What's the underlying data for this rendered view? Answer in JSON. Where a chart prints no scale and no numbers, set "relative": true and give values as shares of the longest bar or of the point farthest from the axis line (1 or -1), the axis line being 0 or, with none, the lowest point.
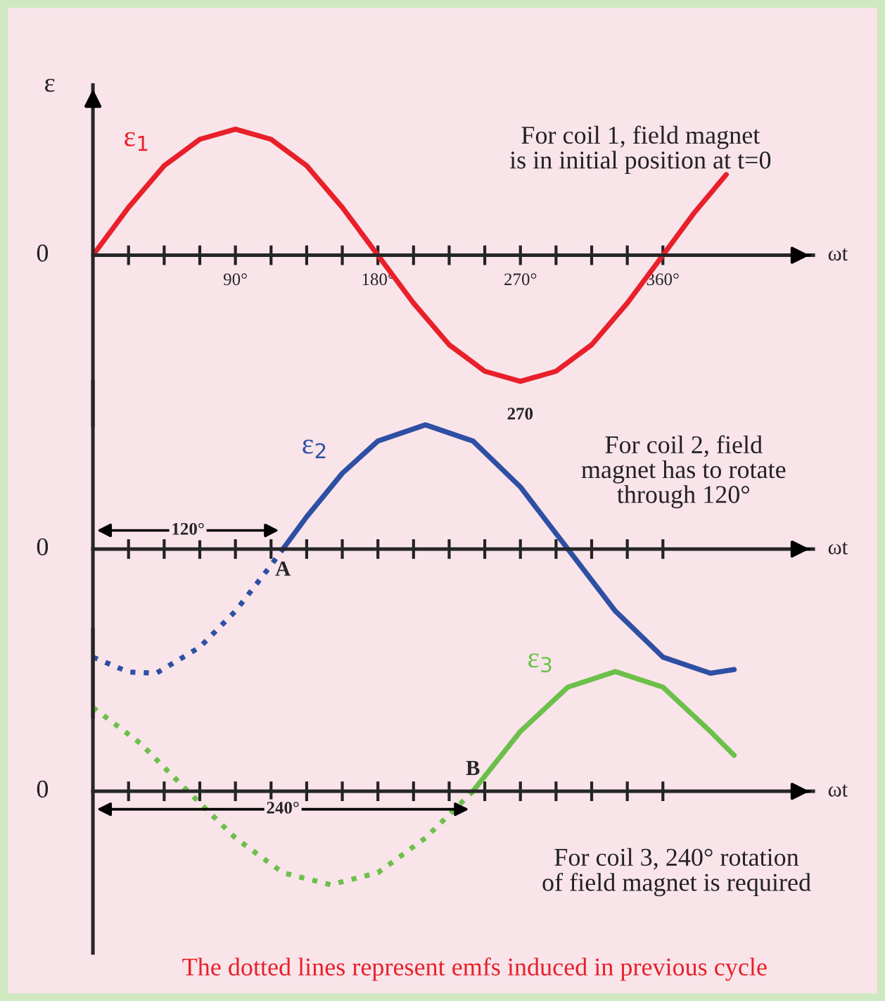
{
  "chart_data": [
    {
      "type": "line",
      "relative": true,
      "ylabel": "ε",
      "xlabel": "ωt",
      "xlim": [
        0,
        455
      ],
      "xticks": [
        {
          "value": 22.5,
          "label": null
        },
        {
          "value": 45,
          "label": null
        },
        {
          "value": 67.5,
          "label": null
        },
        {
          "value": 90,
          "label": "90°"
        },
        {
          "value": 112.5,
          "label": null
        },
        {
          "value": 135,
          "label": null
        },
        {
          "value": 157.5,
          "label": null
        },
        {
          "value": 180,
          "label": "180°"
        },
        {
          "value": 202.5,
          "label": null
        },
        {
          "value": 225,
          "label": null
        },
        {
          "value": 247.5,
          "label": null
        },
        {
          "value": 270,
          "label": "270°"
        },
        {
          "value": 292.5,
          "label": null
        },
        {
          "value": 315,
          "label": null
        },
        {
          "value": 337.5,
          "label": null
        },
        {
          "value": 360,
          "label": "360°"
        }
      ],
      "tick_labels": "x",
      "grid": false,
      "marker": "none",
      "series": [
        {
          "name": "ε$_{1}$",
          "color": "#e8202a",
          "line_style": "solid",
          "x": [
            0,
            22.5,
            45,
            67.5,
            90,
            112.5,
            135,
            157.5,
            180,
            202.5,
            225,
            247.5,
            270,
            292.5,
            315,
            337.5,
            360,
            380,
            400
          ],
          "values": [
            0,
            0.38,
            0.71,
            0.92,
            1,
            0.92,
            0.71,
            0.38,
            0,
            -0.38,
            -0.71,
            -0.92,
            -1,
            -0.92,
            -0.71,
            -0.38,
            0,
            0.34,
            0.64
          ]
        }
      ],
      "annotations": [
        "For coil 1, field magnet\nis in initial position at t=0",
        "0",
        "270"
      ]
    },
    {
      "type": "line",
      "relative": true,
      "xlabel": "ωt",
      "xlim": [
        0,
        455
      ],
      "xticks": [
        {
          "value": 22.5,
          "label": null
        },
        {
          "value": 45,
          "label": null
        },
        {
          "value": 67.5,
          "label": null
        },
        {
          "value": 90,
          "label": null
        },
        {
          "value": 112.5,
          "label": null
        },
        {
          "value": 135,
          "label": null
        },
        {
          "value": 157.5,
          "label": null
        },
        {
          "value": 180,
          "label": null
        },
        {
          "value": 202.5,
          "label": null
        },
        {
          "value": 225,
          "label": null
        },
        {
          "value": 247.5,
          "label": null
        },
        {
          "value": 270,
          "label": null
        },
        {
          "value": 292.5,
          "label": null
        },
        {
          "value": 315,
          "label": null
        },
        {
          "value": 337.5,
          "label": null
        },
        {
          "value": 360,
          "label": null
        }
      ],
      "tick_labels": false,
      "grid": false,
      "marker": "none",
      "series": [
        {
          "color": "#2e4fa3",
          "line_style": "dotted",
          "x": [
            0,
            22.5,
            40,
            67.5,
            90,
            112.5,
            120
          ],
          "values": [
            -0.87,
            -0.99,
            -1,
            -0.79,
            -0.5,
            -0.13,
            0
          ]
        },
        {
          "name": "ε$_{2}$",
          "color": "#2e4fa3",
          "line_style": "solid",
          "x": [
            120,
            135,
            157.5,
            180,
            210,
            240,
            270,
            300,
            330,
            360,
            390,
            405
          ],
          "values": [
            0,
            0.26,
            0.61,
            0.87,
            1,
            0.87,
            0.5,
            0,
            -0.5,
            -0.87,
            -1,
            -0.97
          ]
        }
      ],
      "annotations": [
        "For coil 2, field\nmagnet has to rotate\nthrough 120°",
        "0",
        {
          "text": "A",
          "x": 120,
          "y": 0
        },
        {
          "text": "120°",
          "x": 60,
          "y": 0.15
        }
      ]
    },
    {
      "type": "line",
      "relative": true,
      "xlabel": "ωt",
      "xlim": [
        0,
        455
      ],
      "xticks": [
        {
          "value": 22.5,
          "label": null
        },
        {
          "value": 45,
          "label": null
        },
        {
          "value": 67.5,
          "label": null
        },
        {
          "value": 90,
          "label": null
        },
        {
          "value": 112.5,
          "label": null
        },
        {
          "value": 135,
          "label": null
        },
        {
          "value": 157.5,
          "label": null
        },
        {
          "value": 180,
          "label": null
        },
        {
          "value": 202.5,
          "label": null
        },
        {
          "value": 225,
          "label": null
        },
        {
          "value": 247.5,
          "label": null
        },
        {
          "value": 270,
          "label": null
        },
        {
          "value": 292.5,
          "label": null
        },
        {
          "value": 315,
          "label": null
        },
        {
          "value": 337.5,
          "label": null
        },
        {
          "value": 360,
          "label": null
        }
      ],
      "tick_labels": false,
      "grid": false,
      "marker": "none",
      "series": [
        {
          "color": "#6cc04a",
          "line_style": "dotted",
          "x": [
            0,
            30,
            60,
            90,
            120,
            150,
            180,
            210,
            240
          ],
          "values": [
            0.7,
            0.4,
            0,
            -0.39,
            -0.68,
            -0.78,
            -0.68,
            -0.39,
            0
          ]
        },
        {
          "name": "ε$_{3}$",
          "color": "#6cc04a",
          "line_style": "solid",
          "x": [
            240,
            270,
            300,
            330,
            360,
            390,
            405
          ],
          "values": [
            0,
            0.5,
            0.87,
            1,
            0.87,
            0.5,
            0.3
          ]
        }
      ],
      "annotations": [
        "For coil 3, 240° rotation\nof field magnet is required",
        "The dotted lines represent emfs induced in previous cycle",
        "0",
        {
          "text": "B",
          "x": 240,
          "y": 0
        },
        {
          "text": "240°",
          "x": 120,
          "y": -0.15
        }
      ]
    }
  ]
}
